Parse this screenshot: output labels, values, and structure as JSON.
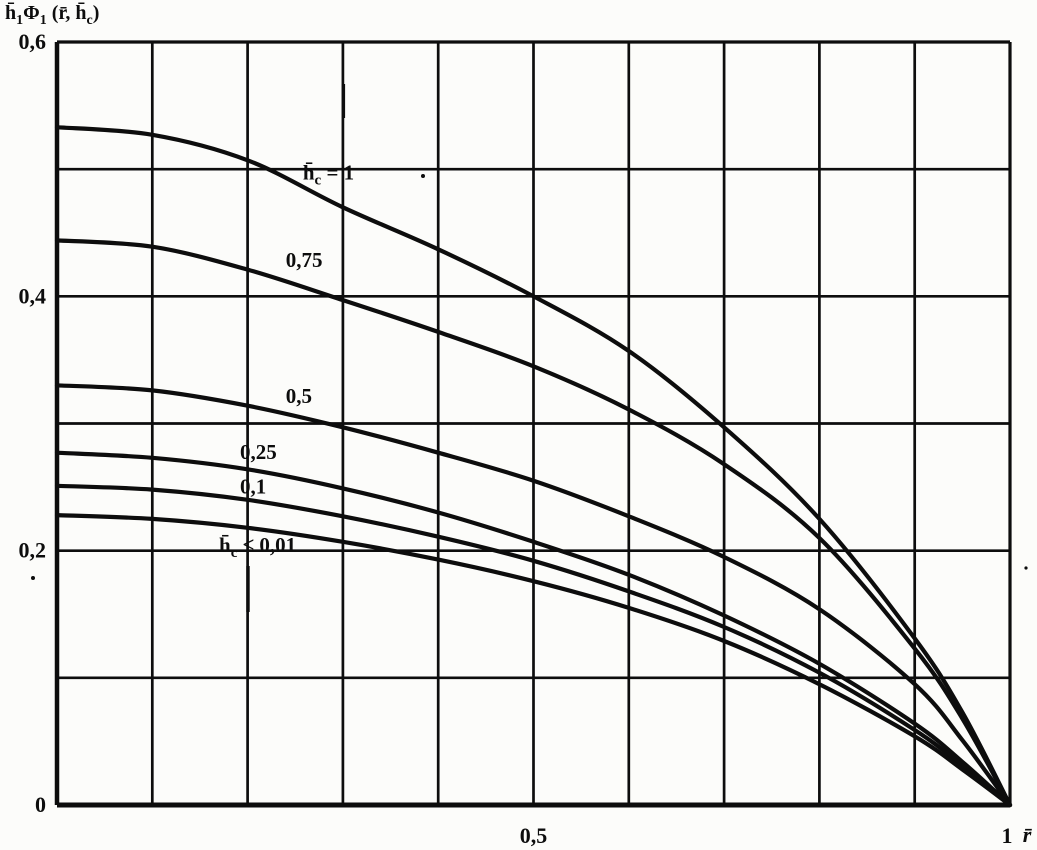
{
  "figure": {
    "background": "#fcfcfa",
    "ink_color": "#0d0d0d",
    "description": "Scanned book figure: family of monotonically decreasing curves h̄1Φ1(r̄, h̄c) versus r̄ for several values of parameter h̄c"
  },
  "chart_data": {
    "type": "line",
    "title": "h̄_1Φ_1 (r̄, h̄_c)",
    "xlabel": "r̄",
    "ylabel": "h̄_1Φ_1 (r̄, h̄_c)",
    "xlim": [
      0,
      1
    ],
    "ylim": [
      0,
      0.6
    ],
    "grid": true,
    "x_grid_step": 0.1,
    "y_grid_step": 0.1,
    "legend_position": "inline-annotations",
    "x_ticks": [
      {
        "value": 0.5,
        "label": "0,5"
      },
      {
        "value": 1,
        "label": "1"
      }
    ],
    "y_ticks": [
      {
        "value": 0.6,
        "label": "0,6"
      },
      {
        "value": 0.4,
        "label": "0,4"
      },
      {
        "value": 0.2,
        "label": "0,2"
      },
      {
        "value": 0,
        "label": "0"
      }
    ],
    "x": [
      0,
      0.1,
      0.2,
      0.3,
      0.4,
      0.5,
      0.6,
      0.7,
      0.8,
      0.9,
      0.95,
      1
    ],
    "series": [
      {
        "name": "h_c = 1",
        "label": "h̄_c = 1",
        "label_pos": [
          0.258,
          0.492
        ],
        "values": [
          0.533,
          0.527,
          0.507,
          0.47,
          0.437,
          0.4,
          0.357,
          0.297,
          0.225,
          0.131,
          0.073,
          0
        ]
      },
      {
        "name": "h_c = 0.75",
        "label": "0,75",
        "label_pos": [
          0.24,
          0.423
        ],
        "values": [
          0.444,
          0.439,
          0.421,
          0.397,
          0.372,
          0.345,
          0.311,
          0.268,
          0.21,
          0.123,
          0.068,
          0
        ]
      },
      {
        "name": "h_c = 0.5",
        "label": "0,5",
        "label_pos": [
          0.24,
          0.316
        ],
        "values": [
          0.33,
          0.326,
          0.314,
          0.297,
          0.277,
          0.255,
          0.227,
          0.195,
          0.154,
          0.095,
          0.051,
          0
        ]
      },
      {
        "name": "h_c = 0.25",
        "label": "0,25",
        "label_pos": [
          0.192,
          0.272
        ],
        "values": [
          0.277,
          0.273,
          0.264,
          0.249,
          0.23,
          0.207,
          0.181,
          0.149,
          0.111,
          0.064,
          0.034,
          0
        ]
      },
      {
        "name": "h_c = 0.1",
        "label": "0,1",
        "label_pos": [
          0.192,
          0.245
        ],
        "values": [
          0.251,
          0.248,
          0.24,
          0.227,
          0.211,
          0.192,
          0.168,
          0.14,
          0.104,
          0.059,
          0.031,
          0
        ]
      },
      {
        "name": "h_c <= 0.01",
        "label": "h̄_c ≤ 0,01",
        "label_pos": [
          0.17,
          0.199
        ],
        "values": [
          0.228,
          0.225,
          0.218,
          0.207,
          0.193,
          0.176,
          0.155,
          0.129,
          0.095,
          0.054,
          0.028,
          0
        ]
      }
    ]
  }
}
